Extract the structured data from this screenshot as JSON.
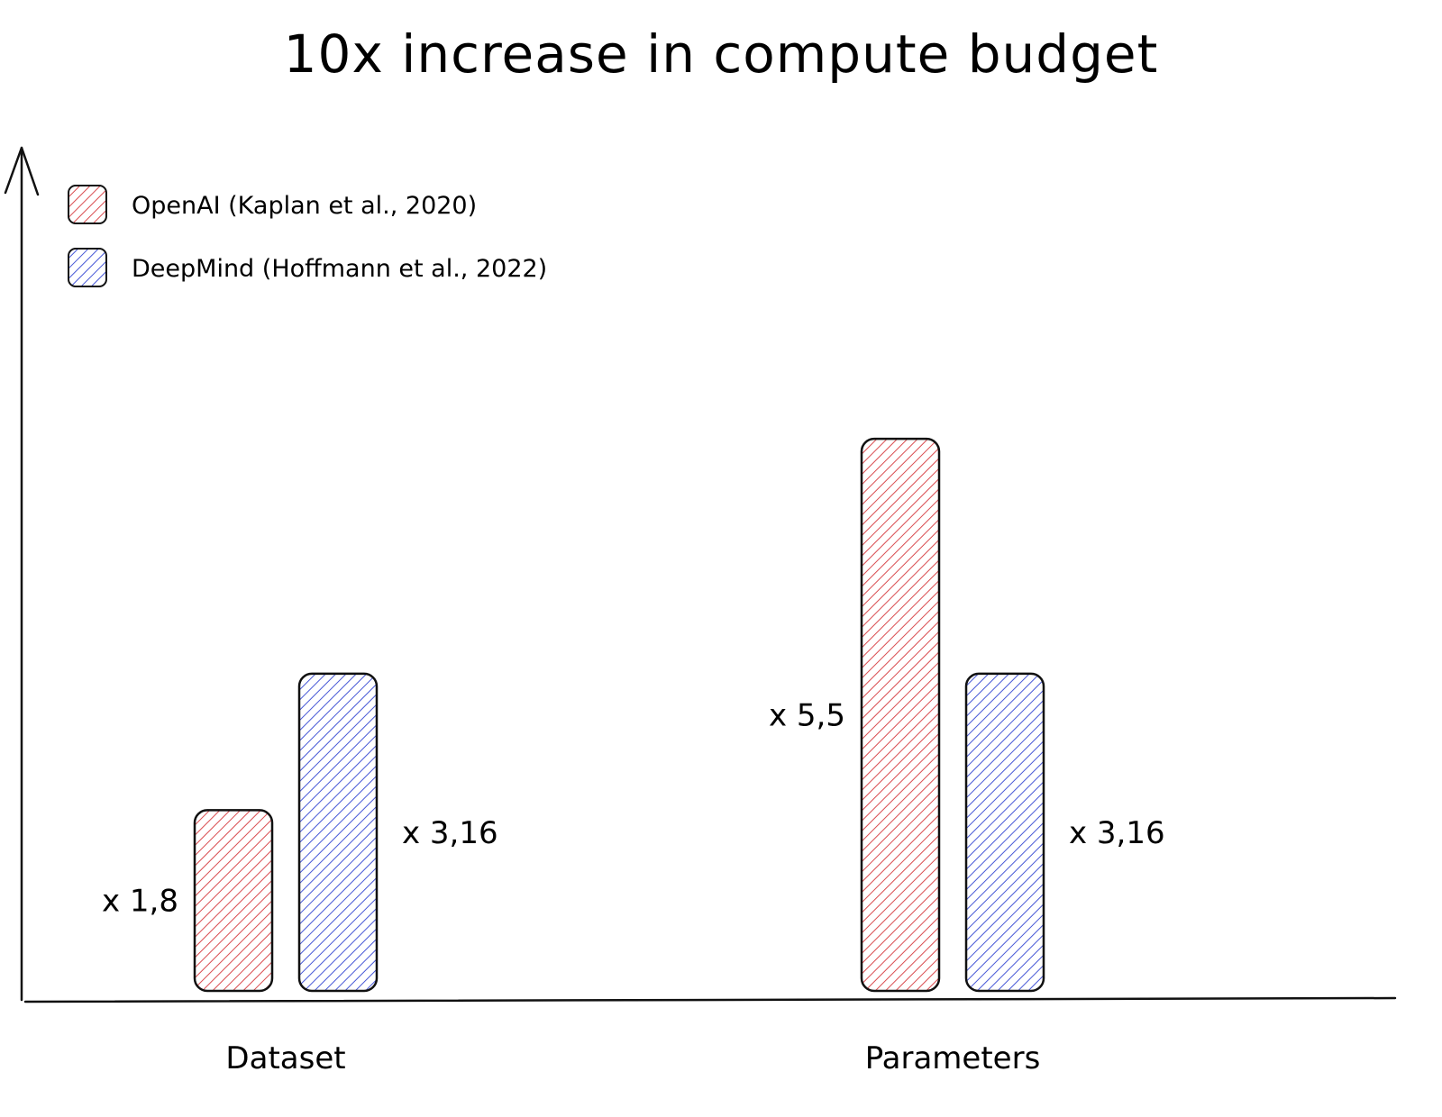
{
  "chart_data": {
    "type": "bar",
    "title": "10x increase in compute budget",
    "xlabel": "",
    "ylabel": "",
    "categories": [
      "Dataset",
      "Parameters"
    ],
    "series": [
      {
        "name": "OpenAI (Kaplan et al., 2020)",
        "values": [
          1.8,
          5.5
        ],
        "labels": [
          "x 1,8",
          "x 5,5"
        ],
        "color": "#d94b4f"
      },
      {
        "name": "DeepMind (Hoffmann et al., 2022)",
        "values": [
          3.16,
          3.16
        ],
        "labels": [
          "x 3,16",
          "x 3,16"
        ],
        "color": "#4657d6"
      }
    ],
    "ylim": [
      0,
      7
    ],
    "grid": false,
    "legend_position": "top-left",
    "hatched": true
  }
}
